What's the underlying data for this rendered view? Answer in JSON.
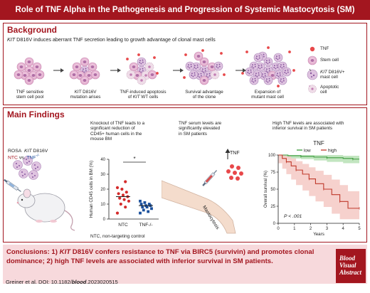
{
  "title": "Role of TNF Alpha in the Pathogenesis and Progression of Systemic Mastocytosis (SM)",
  "background": {
    "heading": "Background",
    "subtitle_gene": "KIT",
    "subtitle_rest": " D816V induces aberrant TNF secretion leading to growth advantage of clonal mast cells",
    "steps": [
      {
        "line1": "TNF sensitive",
        "line2": "stem cell pool"
      },
      {
        "line1_gene": "KIT",
        "line1_rest": " D816V",
        "line2": "mutation arises"
      },
      {
        "line1": "TNF-induced apoptosis",
        "line2_pre": "of ",
        "line2_gene": "KIT",
        "line2_rest": " WT cells"
      },
      {
        "line1": "Survival advantage",
        "line2": "of the clone"
      },
      {
        "line1": "Expansion of",
        "line2": "mutant mast cell"
      }
    ],
    "legend": {
      "tnf": "TNF",
      "stem": "Stem cell",
      "kit_gene": "KIT",
      "kit_rest": " D816V+",
      "kit_line2": "mast cell",
      "apop1": "Apoptotic",
      "apop2": "cell"
    }
  },
  "findings": {
    "heading": "Main Findings",
    "mouse": {
      "rosa": "ROSA",
      "kit_gene": "KIT",
      "kit_rest": " D816V",
      "ntc": "NTC",
      "vs": " vs. ",
      "tnf": "TNF",
      "sup": "-/-"
    },
    "knockout_text": [
      "Knockout of TNF leads to a",
      "significant reduction of",
      "CD45+ human cells in the",
      "mouse BM"
    ],
    "serum_text": [
      "TNF serum levels are",
      "significantly elevated",
      "in SM patients"
    ],
    "survival_text": [
      "High TNF levels are associated with",
      "inferior survival in SM patients"
    ],
    "tnf_arrow_label": "TNF",
    "arm_label": "Mastocytosis",
    "ntc_note": "NTC, non-targeting control"
  },
  "chart_data": [
    {
      "type": "scatter",
      "ylabel": "Human CD45 cells in BM (%)",
      "ylim": [
        0,
        40
      ],
      "yticks": [
        0,
        10,
        20,
        30,
        40
      ],
      "categories": [
        "NTC",
        "TNF-/-"
      ],
      "annotation": "*",
      "series": [
        {
          "name": "NTC",
          "color": "#d42b2b",
          "values": [
            4,
            8,
            10,
            12,
            13,
            14,
            15,
            16,
            17,
            18,
            20,
            21,
            25
          ],
          "mean": 15
        },
        {
          "name": "TNF-/-",
          "color": "#1a4f9c",
          "values": [
            4,
            5,
            6,
            7,
            8,
            8,
            9,
            9,
            10,
            10,
            11,
            12
          ],
          "mean": 9
        }
      ]
    },
    {
      "type": "line",
      "title": "TNF",
      "xlabel": "Years",
      "ylabel": "Overall survival (%)",
      "xlim": [
        0,
        5
      ],
      "ylim": [
        0,
        100
      ],
      "xticks": [
        0,
        1,
        2,
        3,
        4,
        5
      ],
      "yticks": [
        0,
        25,
        50,
        75,
        100
      ],
      "annotation": "P < .001",
      "series": [
        {
          "name": "low",
          "color": "#3a9a3a",
          "band_color": "#b7e0b5",
          "x": [
            0,
            0.6,
            1.4,
            2.2,
            3.0,
            4.0,
            4.6,
            5.0
          ],
          "y": [
            100,
            99,
            98,
            97,
            96,
            95,
            94,
            94
          ],
          "upper": [
            100,
            100,
            100,
            100,
            100,
            99,
            99,
            99
          ],
          "lower": [
            100,
            97,
            95,
            94,
            92,
            90,
            88,
            88
          ]
        },
        {
          "name": "high",
          "color": "#c0392b",
          "band_color": "#f4c9c4",
          "x": [
            0,
            0.25,
            0.5,
            0.8,
            1.1,
            1.5,
            1.9,
            2.3,
            2.8,
            3.3,
            3.8,
            4.3,
            5.0
          ],
          "y": [
            100,
            95,
            90,
            84,
            78,
            72,
            65,
            58,
            50,
            42,
            32,
            22,
            22
          ],
          "upper": [
            100,
            100,
            98,
            95,
            91,
            87,
            82,
            77,
            71,
            64,
            56,
            47,
            47
          ],
          "lower": [
            100,
            88,
            80,
            72,
            64,
            56,
            48,
            40,
            32,
            24,
            14,
            6,
            6
          ]
        }
      ]
    }
  ],
  "conclusions": {
    "label": "Conclusions:",
    "p1_num": " 1) ",
    "p1_gene": "KIT",
    "p1_rest": " D816V confers resistance to TNF via BIRC5 (survivin) and promotes clonal",
    "p2": "dominance; 2) high TNF levels are associated with inferior survival in SM patients."
  },
  "citation": {
    "authors": "Greiner et al. DOI: 10.1182/",
    "journal": "blood",
    "suffix": ".2023020515"
  },
  "badge": [
    "Blood",
    "Visual",
    "Abstract"
  ],
  "colors": {
    "brand": "#a3161f",
    "conclusion_bg": "#f7d9dc",
    "cell": "#e9b8d4",
    "nucleus": "#b06fa6",
    "tnf": "#e8484a"
  }
}
